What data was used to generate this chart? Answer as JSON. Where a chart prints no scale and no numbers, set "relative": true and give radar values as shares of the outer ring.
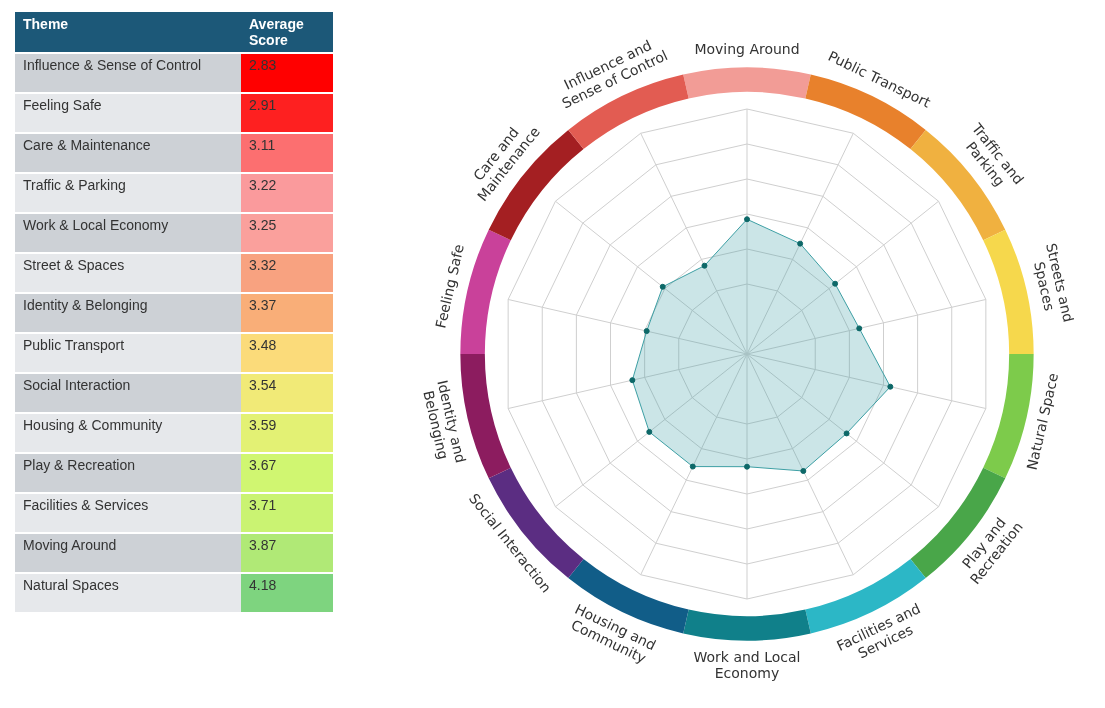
{
  "chart_data": [
    {
      "type": "heatmap",
      "ylabel": "Theme",
      "data_labels": true,
      "categories": [
        "Average Score"
      ],
      "y_categories": [
        "Influence & Sense of Control",
        "Feeling Safe",
        "Care & Maintenance",
        "Traffic & Parking",
        "Work & Local Economy",
        "Street & Spaces",
        "Identity & Belonging",
        "Public Transport",
        "Social Interaction",
        "Housing & Community",
        "Play & Recreation",
        "Facilities & Services",
        "Moving Around",
        "Natural Spaces"
      ],
      "cells": [
        [
          2.83
        ],
        [
          2.91
        ],
        [
          3.11
        ],
        [
          3.22
        ],
        [
          3.25
        ],
        [
          3.32
        ],
        [
          3.37
        ],
        [
          3.48
        ],
        [
          3.54
        ],
        [
          3.59
        ],
        [
          3.67
        ],
        [
          3.71
        ],
        [
          3.87
        ],
        [
          4.18
        ]
      ]
    },
    {
      "type": "radar",
      "categories": [
        "Moving Around",
        "Public Transport",
        "Traffic and Parking",
        "Streets and Spaces",
        "Natural Space",
        "Play and Recreation",
        "Facilities and Services",
        "Work and Local Economy",
        "Housing and Community",
        "Social Interaction",
        "Identity and Belonging",
        "Feeling Safe",
        "Care and Maintenance",
        "Influence and Sense of Control"
      ],
      "colors": [
        "#f29c96",
        "#e8812c",
        "#f0b140",
        "#f6d84c",
        "#7dcb4b",
        "#49a649",
        "#2cb7c6",
        "#10808a",
        "#115d88",
        "#5b2d82",
        "#8c1c5f",
        "#c9419a",
        "#a41f22",
        "#e25c52"
      ],
      "series": [
        {
          "color": "#3d9fa4",
          "values": [
            0.55,
            0.5,
            0.46,
            0.47,
            0.6,
            0.52,
            0.53,
            0.46,
            0.51,
            0.51,
            0.48,
            0.42,
            0.44,
            0.4
          ]
        }
      ],
      "relative": true,
      "grid": true,
      "marker": "circle"
    }
  ]
}
